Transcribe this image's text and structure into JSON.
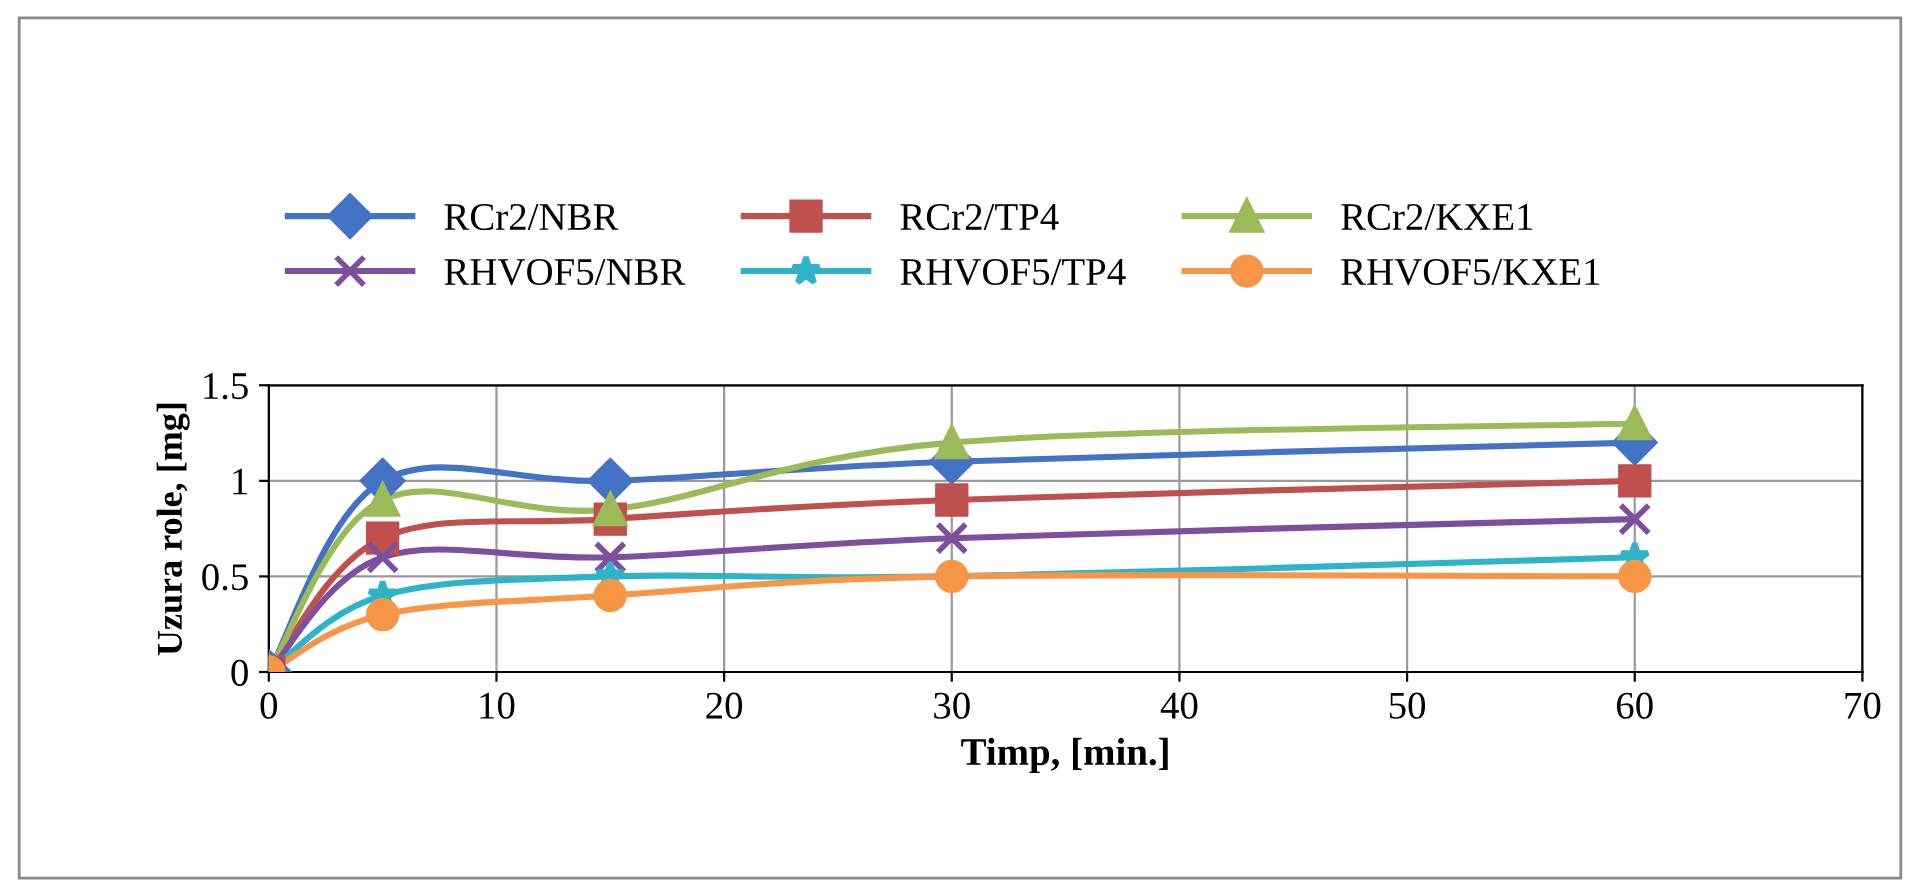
{
  "chart_data": {
    "type": "line",
    "xlabel": "Timp, [min.]",
    "ylabel": "Uzura role, [mg]",
    "x": [
      0,
      5,
      15,
      30,
      60
    ],
    "series": [
      {
        "name": "RCr2/NBR",
        "color": "#4472c4",
        "marker": "diamond",
        "values": [
          0,
          1.0,
          1.0,
          1.1,
          1.2
        ]
      },
      {
        "name": "RCr2/TP4",
        "color": "#c0504d",
        "marker": "square",
        "values": [
          0,
          0.7,
          0.8,
          0.9,
          1.0
        ]
      },
      {
        "name": "RCr2/KXE1",
        "color": "#9bbb59",
        "marker": "triangle",
        "values": [
          0,
          0.9,
          0.85,
          1.2,
          1.3
        ]
      },
      {
        "name": "RHVOF5/NBR",
        "color": "#7f4f9f",
        "marker": "cross",
        "values": [
          0,
          0.6,
          0.6,
          0.7,
          0.8
        ]
      },
      {
        "name": "RHVOF5/TP4",
        "color": "#2eb3c8",
        "marker": "star",
        "values": [
          0,
          0.4,
          0.5,
          0.5,
          0.6
        ]
      },
      {
        "name": "RHVOF5/KXE1",
        "color": "#f79646",
        "marker": "circle",
        "values": [
          0,
          0.3,
          0.4,
          0.5,
          0.5
        ]
      }
    ],
    "xlim": [
      0,
      70
    ],
    "xticks": [
      0,
      10,
      20,
      30,
      40,
      50,
      60,
      70
    ],
    "ylim": [
      0,
      1.5
    ],
    "yticks": [
      0,
      0.5,
      1,
      1.5
    ],
    "grid": true,
    "legend": "top",
    "line_style": "solid"
  }
}
